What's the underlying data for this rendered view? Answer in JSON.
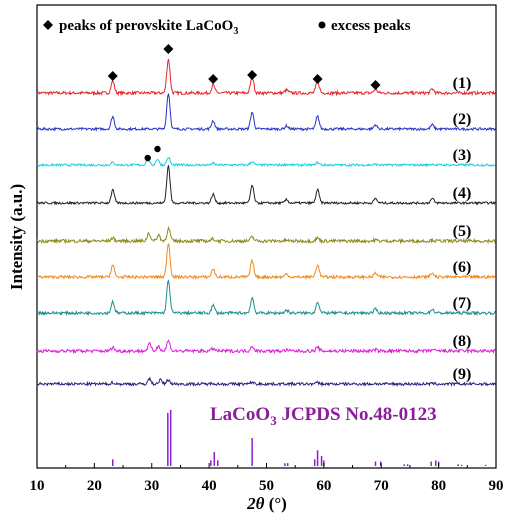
{
  "chart_data": {
    "type": "line",
    "title": "",
    "xlabel_italic": "2θ",
    "xlabel_unit": " (°)",
    "ylabel": "Intensity (a.u.)",
    "xlim": [
      10,
      90
    ],
    "xticks": [
      10,
      20,
      30,
      40,
      50,
      60,
      70,
      80,
      90
    ],
    "legend": {
      "perovskite_prefix": "peaks of perovskite LaCoO",
      "perovskite_sub": "3",
      "excess": "excess peaks"
    },
    "reference_label": {
      "prefix": "LaCoO",
      "sub": "3",
      "suffix": " JCPDS No.48-0123"
    },
    "perovskite_marker_x": [
      23.2,
      32.9,
      40.7,
      47.5,
      58.9,
      69.0
    ],
    "excess_marker_x": [
      29.3,
      31.0
    ],
    "series": [
      {
        "name": "(1)",
        "color": "#e8242c",
        "noise": 1.5,
        "peak_scale": 1.0,
        "extra_peaks": []
      },
      {
        "name": "(2)",
        "color": "#2633c9",
        "noise": 1.2,
        "peak_scale": 1.05,
        "extra_peaks": []
      },
      {
        "name": "(3)",
        "color": "#19d0e0",
        "noise": 1.1,
        "peak_scale": 0.22,
        "extra_peaks": [
          [
            29.3,
            6
          ],
          [
            31.0,
            6
          ]
        ]
      },
      {
        "name": "(4)",
        "color": "#222222",
        "noise": 1.1,
        "peak_scale": 1.1,
        "extra_peaks": []
      },
      {
        "name": "(5)",
        "color": "#8a8a1a",
        "noise": 1.6,
        "peak_scale": 0.25,
        "extra_peaks": [
          [
            29.5,
            8
          ],
          [
            31.2,
            6
          ],
          [
            33.0,
            4
          ]
        ]
      },
      {
        "name": "(6)",
        "color": "#f08a1c",
        "noise": 1.4,
        "peak_scale": 1.0,
        "extra_peaks": []
      },
      {
        "name": "(7)",
        "color": "#1a8f8f",
        "noise": 1.4,
        "peak_scale": 0.95,
        "extra_peaks": []
      },
      {
        "name": "(8)",
        "color": "#d81fd8",
        "noise": 1.6,
        "peak_scale": 0.3,
        "extra_peaks": [
          [
            29.6,
            7
          ],
          [
            31.2,
            5
          ]
        ]
      },
      {
        "name": "(9)",
        "color": "#22227a",
        "noise": 1.4,
        "peak_scale": 0.12,
        "extra_peaks": [
          [
            29.6,
            5
          ],
          [
            31.5,
            4
          ]
        ]
      }
    ],
    "reference_lines": [
      {
        "x": 23.2,
        "h": 0.12
      },
      {
        "x": 32.8,
        "h": 0.95
      },
      {
        "x": 33.3,
        "h": 1.0
      },
      {
        "x": 40.3,
        "h": 0.1
      },
      {
        "x": 40.9,
        "h": 0.25
      },
      {
        "x": 41.5,
        "h": 0.1
      },
      {
        "x": 47.5,
        "h": 0.5
      },
      {
        "x": 53.2,
        "h": 0.05
      },
      {
        "x": 53.7,
        "h": 0.05
      },
      {
        "x": 58.4,
        "h": 0.12
      },
      {
        "x": 58.9,
        "h": 0.28
      },
      {
        "x": 59.6,
        "h": 0.18
      },
      {
        "x": 60.0,
        "h": 0.1
      },
      {
        "x": 69.0,
        "h": 0.08
      },
      {
        "x": 69.9,
        "h": 0.08
      },
      {
        "x": 74.0,
        "h": 0.03
      },
      {
        "x": 74.6,
        "h": 0.03
      },
      {
        "x": 78.7,
        "h": 0.08
      },
      {
        "x": 79.5,
        "h": 0.1
      },
      {
        "x": 80.0,
        "h": 0.08
      },
      {
        "x": 83.4,
        "h": 0.03
      },
      {
        "x": 84.0,
        "h": 0.02
      },
      {
        "x": 88.2,
        "h": 0.02
      }
    ]
  }
}
